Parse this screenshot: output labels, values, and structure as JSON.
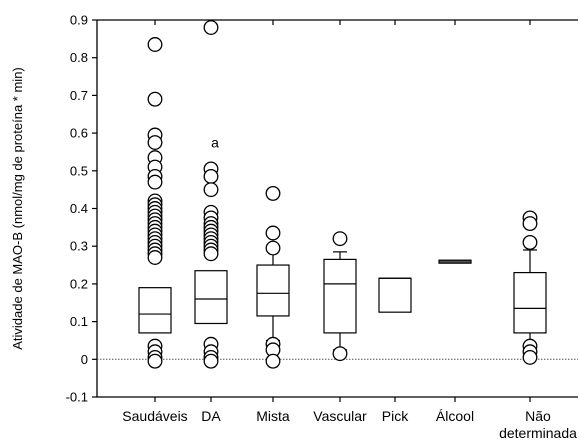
{
  "chart_data": {
    "type": "box",
    "title": "",
    "xlabel": "",
    "ylabel": "Atividade de MAO-B (nmol/mg de proteína * min)",
    "ylim": [
      -0.1,
      0.9
    ],
    "yticks": [
      -0.1,
      0,
      0.1,
      0.2,
      0.3,
      0.4,
      0.5,
      0.6,
      0.7,
      0.8,
      0.9
    ],
    "ytick_labels": [
      "-0.1",
      "0",
      "0.1",
      "0.2",
      "0.3",
      "0.4",
      "0.5",
      "0.6",
      "0.7",
      "0.8",
      "0.9"
    ],
    "reference_line": 0,
    "grid": false,
    "legend": "none",
    "categories": [
      {
        "label": "Saudáveis",
        "q1": 0.07,
        "median": 0.12,
        "q3": 0.19,
        "whisker_low": null,
        "whisker_high": null,
        "outliers": [
          0.835,
          0.69,
          0.595,
          0.575,
          0.535,
          0.51,
          0.485,
          0.47,
          0.42,
          0.41,
          0.4,
          0.39,
          0.38,
          0.37,
          0.36,
          0.35,
          0.34,
          0.33,
          0.32,
          0.31,
          0.3,
          0.29,
          0.28,
          0.27,
          0.035,
          0.02,
          0.005,
          -0.005
        ]
      },
      {
        "label": "DA",
        "q1": 0.095,
        "median": 0.16,
        "q3": 0.235,
        "whisker_low": null,
        "whisker_high": null,
        "outliers": [
          0.88,
          0.505,
          0.485,
          0.45,
          0.39,
          0.375,
          0.36,
          0.35,
          0.34,
          0.33,
          0.32,
          0.31,
          0.3,
          0.29,
          0.28,
          0.04,
          0.02,
          0.005,
          -0.005
        ]
      },
      {
        "label": "Mista",
        "q1": 0.115,
        "median": 0.175,
        "q3": 0.25,
        "whisker_low": 0.05,
        "whisker_high": 0.29,
        "outliers": [
          0.44,
          0.335,
          0.295,
          0.04,
          0.025,
          -0.005
        ]
      },
      {
        "label": "Vascular",
        "q1": 0.07,
        "median": 0.2,
        "q3": 0.265,
        "whisker_low": 0.025,
        "whisker_high": 0.285,
        "outliers": [
          0.32,
          0.015
        ]
      },
      {
        "label": "Pick",
        "q1": 0.125,
        "median": 0.215,
        "q3": 0.215,
        "whisker_low": null,
        "whisker_high": null,
        "outliers": []
      },
      {
        "label": "Álcool",
        "q1": 0.255,
        "median": 0.26,
        "q3": 0.262,
        "whisker_low": null,
        "whisker_high": null,
        "outliers": []
      },
      {
        "label": "Não\ndeterminada",
        "q1": 0.07,
        "median": 0.135,
        "q3": 0.23,
        "whisker_low": 0.04,
        "whisker_high": 0.29,
        "outliers": [
          0.375,
          0.36,
          0.31,
          0.035,
          0.02,
          0.005
        ]
      }
    ],
    "annotations": [
      {
        "text": "a",
        "category": "DA",
        "y": 0.575
      }
    ]
  }
}
